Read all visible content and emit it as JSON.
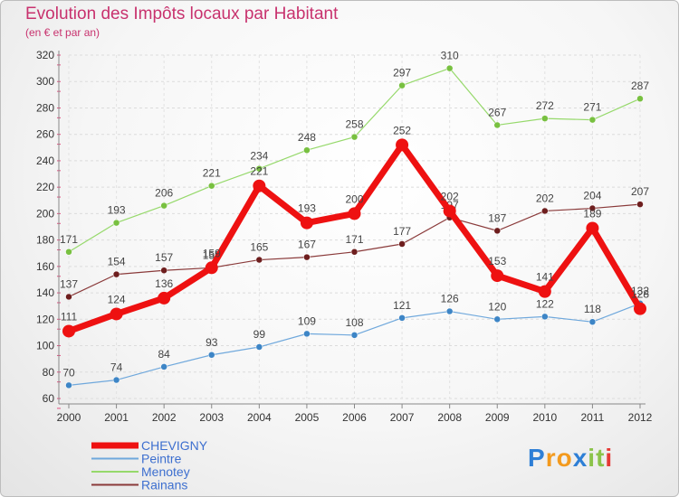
{
  "title": "Evolution des Impôts locaux par Habitant",
  "subtitle": "(en € et par an)",
  "logo": {
    "text": "Proxiti",
    "letters": [
      "P",
      "r",
      "o",
      "x",
      "i",
      "t",
      "i"
    ],
    "colors": [
      "#2e7fd6",
      "#f39a1e",
      "#f39a1e",
      "#2e7fd6",
      "#8bc34a",
      "#8bc34a",
      "#e53935"
    ]
  },
  "chart_data": {
    "type": "line",
    "x": [
      "2000",
      "2001",
      "2002",
      "2003",
      "2004",
      "2005",
      "2006",
      "2007",
      "2008",
      "2009",
      "2010",
      "2011",
      "2012"
    ],
    "ylim": [
      60,
      320
    ],
    "yticks": [
      60,
      80,
      100,
      120,
      140,
      160,
      180,
      200,
      220,
      240,
      260,
      280,
      300,
      320
    ],
    "grid": true,
    "legend": "bottom-left",
    "series": [
      {
        "name": "Menotey",
        "color": "#96d96b",
        "marker": "#78c040",
        "width": 1.2,
        "r": 3.5,
        "values": [
          171,
          193,
          206,
          221,
          234,
          248,
          258,
          297,
          310,
          267,
          272,
          271,
          287
        ]
      },
      {
        "name": "Rainans",
        "color": "#8a3a3a",
        "marker": "#6e1e1e",
        "width": 1.2,
        "r": 3.5,
        "values": [
          137,
          154,
          157,
          159,
          165,
          167,
          171,
          177,
          197,
          187,
          202,
          204,
          207
        ],
        "labels": [
          "137",
          "154",
          "157",
          "159",
          "165",
          "167",
          "171",
          "177",
          "197",
          "187",
          "202",
          "204",
          "207"
        ]
      },
      {
        "name": "Peintre",
        "color": "#6fa8dc",
        "marker": "#3d85c6",
        "width": 1.2,
        "r": 3.5,
        "values": [
          70,
          74,
          84,
          93,
          99,
          109,
          108,
          121,
          126,
          120,
          122,
          118,
          132
        ]
      },
      {
        "name": "CHEVIGNY",
        "color": "#ee1111",
        "marker": "#ee1111",
        "width": 7,
        "r": 7,
        "values": [
          111,
          124,
          136,
          159,
          221,
          193,
          200,
          252,
          202,
          153,
          141,
          189,
          128
        ]
      }
    ]
  }
}
